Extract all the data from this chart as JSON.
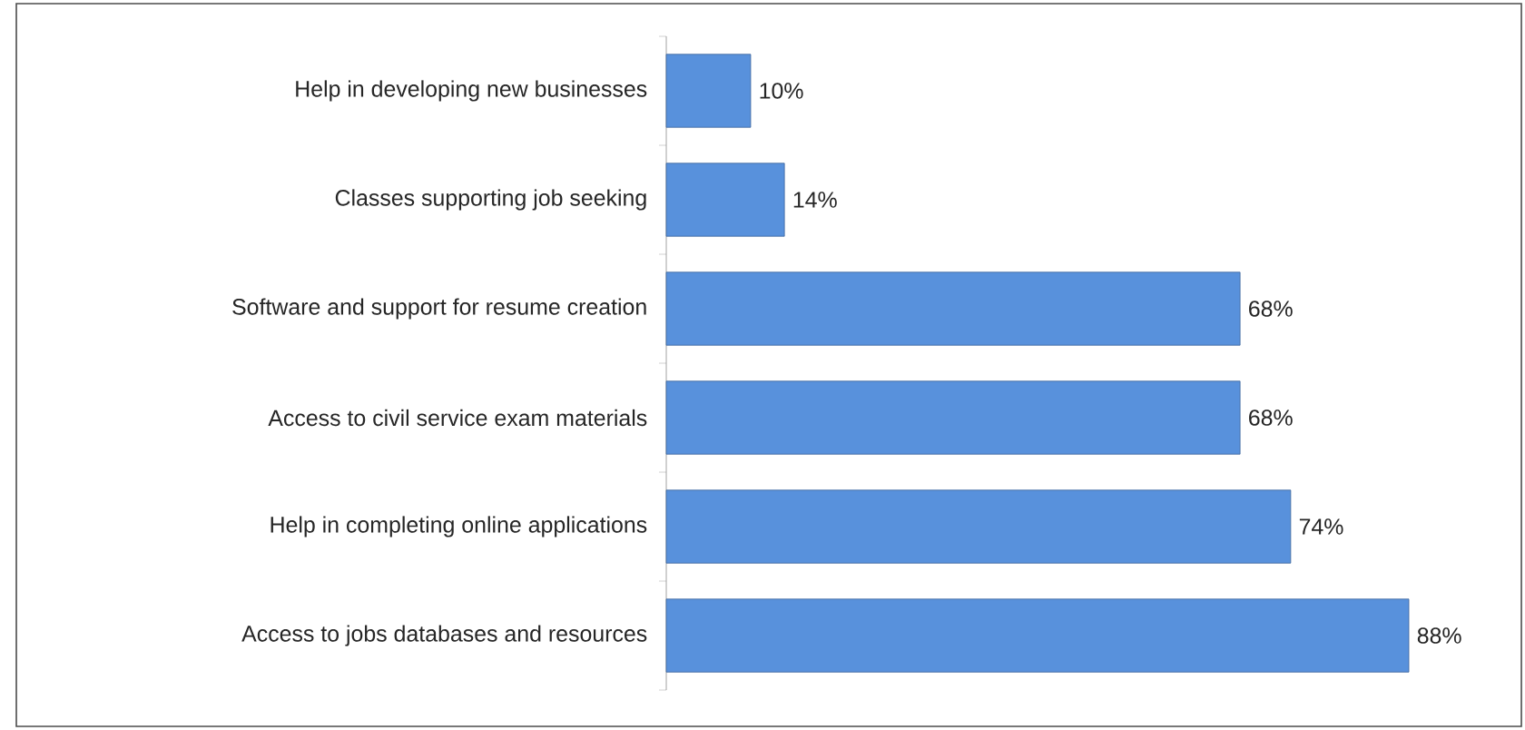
{
  "chart_data": {
    "type": "bar",
    "orientation": "horizontal",
    "categories": [
      "Help in developing new businesses",
      "Classes supporting job seeking",
      "Software and support for resume creation",
      "Access to civil service exam materials",
      "Help in completing online applications",
      "Access to jobs databases and resources"
    ],
    "values": [
      10,
      14,
      68,
      68,
      74,
      88
    ],
    "value_labels": [
      "10%",
      "14%",
      "68%",
      "68%",
      "74%",
      "88%"
    ],
    "color": "#5891dc"
  }
}
